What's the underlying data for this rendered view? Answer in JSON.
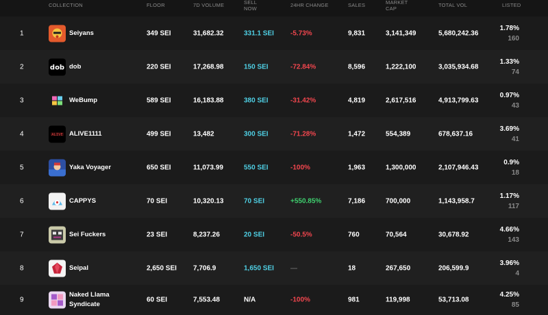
{
  "columns": {
    "collection": "COLLECTION",
    "floor": "FLOOR",
    "vol7d": "7D VOLUME",
    "sell_now_1": "SELL",
    "sell_now_2": "NOW",
    "change24": "24HR CHANGE",
    "sales": "SALES",
    "mcap_1": "MARKET",
    "mcap_2": "CAP",
    "total_vol": "TOTAL VOL",
    "listed": "LISTED"
  },
  "rows": [
    {
      "rank": "1",
      "name": "Seiyans",
      "floor": "349 SEI",
      "vol7d": "31,682.32",
      "sell_now": "331.1 SEI",
      "change": "-5.73%",
      "sales": "9,831",
      "mcap": "3,141,349",
      "total_vol": "5,680,242.36",
      "listed_pct": "1.78%",
      "listed_count": "160",
      "icon": "seiyans-icon"
    },
    {
      "rank": "2",
      "name": "dob",
      "floor": "220 SEI",
      "vol7d": "17,268.98",
      "sell_now": "150 SEI",
      "change": "-72.84%",
      "sales": "8,596",
      "mcap": "1,222,100",
      "total_vol": "3,035,934.68",
      "listed_pct": "1.33%",
      "listed_count": "74",
      "icon": "dob-icon"
    },
    {
      "rank": "3",
      "name": "WeBump",
      "floor": "589 SEI",
      "vol7d": "16,183.88",
      "sell_now": "380 SEI",
      "change": "-31.42%",
      "sales": "4,819",
      "mcap": "2,617,516",
      "total_vol": "4,913,799.63",
      "listed_pct": "0.97%",
      "listed_count": "43",
      "icon": "webump-icon"
    },
    {
      "rank": "4",
      "name": "ALIVE1111",
      "floor": "499 SEI",
      "vol7d": "13,482",
      "sell_now": "300 SEI",
      "change": "-71.28%",
      "sales": "1,472",
      "mcap": "554,389",
      "total_vol": "678,637.16",
      "listed_pct": "3.69%",
      "listed_count": "41",
      "icon": "alive-icon"
    },
    {
      "rank": "5",
      "name": "Yaka Voyager",
      "floor": "650 SEI",
      "vol7d": "11,073.99",
      "sell_now": "550 SEI",
      "change": "-100%",
      "sales": "1,963",
      "mcap": "1,300,000",
      "total_vol": "2,107,946.43",
      "listed_pct": "0.9%",
      "listed_count": "18",
      "icon": "yaka-voyager-icon"
    },
    {
      "rank": "6",
      "name": "CAPPYS",
      "floor": "70 SEI",
      "vol7d": "10,320.13",
      "sell_now": "70 SEI",
      "change": "+550.85%",
      "sales": "7,186",
      "mcap": "700,000",
      "total_vol": "1,143,958.7",
      "listed_pct": "1.17%",
      "listed_count": "117",
      "icon": "cappys-icon"
    },
    {
      "rank": "7",
      "name": "Sei Fuckers",
      "floor": "23 SEI",
      "vol7d": "8,237.26",
      "sell_now": "20 SEI",
      "change": "-50.5%",
      "sales": "760",
      "mcap": "70,564",
      "total_vol": "30,678.92",
      "listed_pct": "4.66%",
      "listed_count": "143",
      "icon": "sei-fuckers-icon"
    },
    {
      "rank": "8",
      "name": "Seipal",
      "floor": "2,650 SEI",
      "vol7d": "7,706.9",
      "sell_now": "1,650 SEI",
      "change": "—",
      "sales": "18",
      "mcap": "267,650",
      "total_vol": "206,599.9",
      "listed_pct": "3.96%",
      "listed_count": "4",
      "icon": "seipal-icon"
    },
    {
      "rank": "9",
      "name": "Naked Llama Syndicate",
      "floor": "60 SEI",
      "vol7d": "7,553.48",
      "sell_now": "N/A",
      "change": "-100%",
      "sales": "981",
      "mcap": "119,998",
      "total_vol": "53,713.08",
      "listed_pct": "4.25%",
      "listed_count": "85",
      "icon": "naked-llama-icon"
    }
  ]
}
